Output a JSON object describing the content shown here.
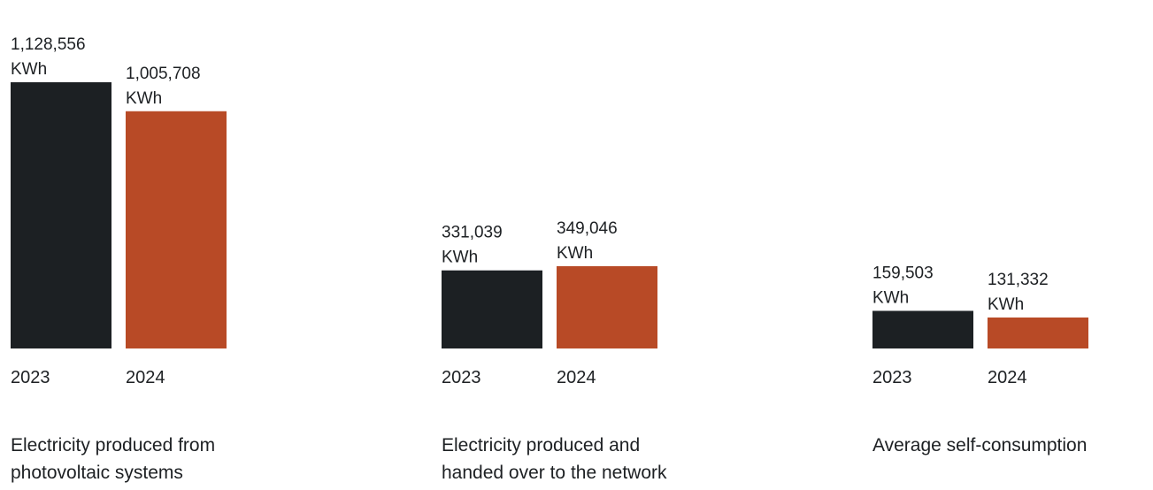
{
  "colors": {
    "y2023": "#1c2023",
    "y2024": "#b84a26"
  },
  "unit": "KWh",
  "chart_data": [
    {
      "type": "bar",
      "title": "Electricity produced from\nphotovoltaic systems",
      "categories": [
        "2023",
        "2024"
      ],
      "values": [
        1128556,
        1005708
      ],
      "labels": [
        "1,128,556",
        "1,005,708"
      ]
    },
    {
      "type": "bar",
      "title": "Electricity produced and\nhanded over to the network",
      "categories": [
        "2023",
        "2024"
      ],
      "values": [
        331039,
        349046
      ],
      "labels": [
        "331,039",
        "349,046"
      ]
    },
    {
      "type": "bar",
      "title": "Average self-consumption",
      "categories": [
        "2023",
        "2024"
      ],
      "values": [
        159503,
        131332
      ],
      "labels": [
        "159,503",
        "131,332"
      ]
    }
  ]
}
